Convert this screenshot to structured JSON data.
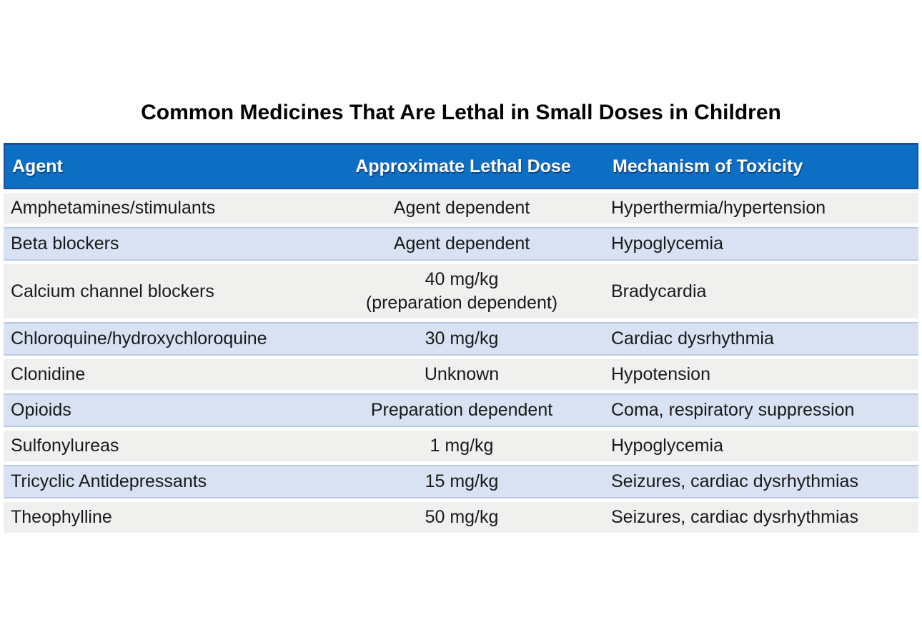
{
  "title": "Common Medicines That Are Lethal in Small Doses in Children",
  "chart_data": {
    "type": "table",
    "title": "Common Medicines That Are Lethal in Small Doses in Children",
    "columns": [
      "Agent",
      "Approximate Lethal Dose",
      "Mechanism of Toxicity"
    ],
    "rows": [
      {
        "agent": "Amphetamines/stimulants",
        "dose": "Agent dependent",
        "mechanism": "Hyperthermia/hypertension"
      },
      {
        "agent": "Beta blockers",
        "dose": "Agent dependent",
        "mechanism": "Hypoglycemia"
      },
      {
        "agent": "Calcium channel blockers",
        "dose": "40 mg/kg",
        "dose2": "(preparation dependent)",
        "mechanism": "Bradycardia"
      },
      {
        "agent": "Chloroquine/hydroxychloroquine",
        "dose": "30 mg/kg",
        "mechanism": "Cardiac dysrhythmia"
      },
      {
        "agent": "Clonidine",
        "dose": "Unknown",
        "mechanism": "Hypotension"
      },
      {
        "agent": "Opioids",
        "dose": "Preparation dependent",
        "mechanism": "Coma, respiratory suppression"
      },
      {
        "agent": "Sulfonylureas",
        "dose": "1 mg/kg",
        "mechanism": "Hypoglycemia"
      },
      {
        "agent": "Tricyclic Antidepressants",
        "dose": "15 mg/kg",
        "mechanism": "Seizures, cardiac dysrhythmias"
      },
      {
        "agent": "Theophylline",
        "dose": "50 mg/kg",
        "mechanism": "Seizures, cardiac dysrhythmias"
      }
    ],
    "layout": {
      "striping": "alternating gray/blue starting gray",
      "gridlines": "horizontal only"
    }
  },
  "theme": {
    "header_bg": "#0d6fc3",
    "header_border": "#1a4fa0",
    "header_text": "#ffffff",
    "row_gray": "#f0f0ef",
    "row_blue": "#d8e2f3",
    "row_blue_border": "#bac9e3",
    "text_color": "#191919",
    "page_bg": "#ffffff"
  }
}
